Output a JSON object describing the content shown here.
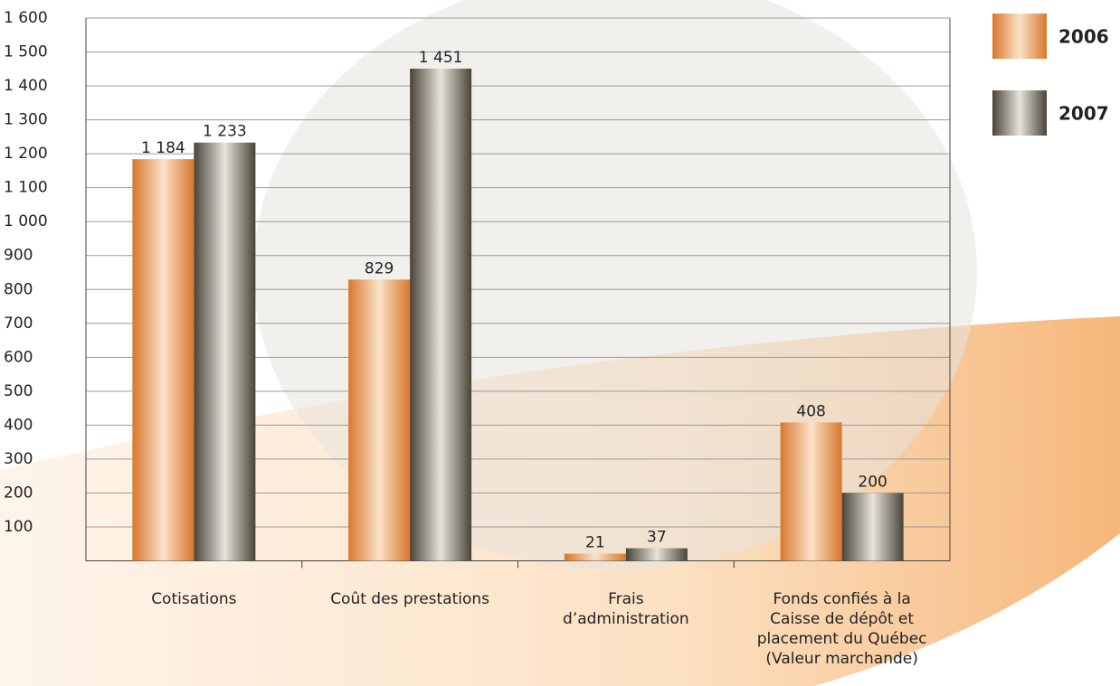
{
  "chart_data": {
    "type": "bar",
    "categories": [
      "Cotisations",
      "Coût des prestations",
      "Frais d’administration",
      "Fonds confiés à la Caisse de dépôt et placement du Québec (Valeur marchande)"
    ],
    "series": [
      {
        "name": "2006",
        "color": "#d9772c",
        "values": [
          1184,
          829,
          21,
          408
        ],
        "value_labels": [
          "1 184",
          "829",
          "21",
          "408"
        ]
      },
      {
        "name": "2007",
        "color": "#4a4437",
        "values": [
          1233,
          1451,
          37,
          200
        ],
        "value_labels": [
          "1 233",
          "1 451",
          "37",
          "200"
        ]
      }
    ],
    "ylim": [
      0,
      1600
    ],
    "yticks": [
      100,
      200,
      300,
      400,
      500,
      600,
      700,
      800,
      900,
      {
        "value": 1000,
        "label": "1 000"
      },
      {
        "value": 1100,
        "label": "1 100"
      },
      {
        "value": 1200,
        "label": "1 200"
      },
      {
        "value": 1300,
        "label": "1 300"
      },
      {
        "value": 1400,
        "label": "1 400"
      },
      {
        "value": 1500,
        "label": "1 500"
      },
      {
        "value": 1600,
        "label": "1 600"
      }
    ],
    "grid": true,
    "legend": "top-right"
  }
}
